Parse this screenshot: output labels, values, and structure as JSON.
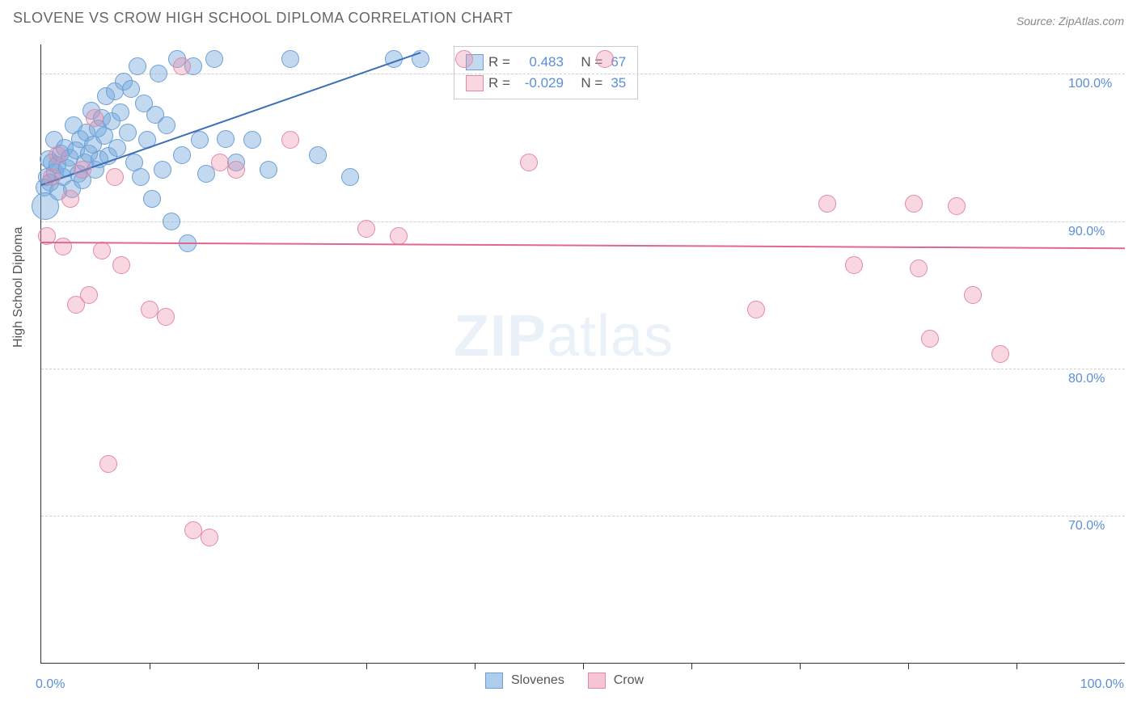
{
  "title": "SLOVENE VS CROW HIGH SCHOOL DIPLOMA CORRELATION CHART",
  "source": "Source: ZipAtlas.com",
  "ylabel": "High School Diploma",
  "watermark_bold": "ZIP",
  "watermark_rest": "atlas",
  "chart": {
    "type": "scatter",
    "xlim": [
      0,
      100
    ],
    "ylim": [
      60,
      102
    ],
    "x_label_min": "0.0%",
    "x_label_max": "100.0%",
    "x_ticks": [
      10,
      20,
      30,
      40,
      50,
      60,
      70,
      80,
      90
    ],
    "y_grid": [
      {
        "v": 70,
        "label": "70.0%"
      },
      {
        "v": 80,
        "label": "80.0%"
      },
      {
        "v": 90,
        "label": "90.0%"
      },
      {
        "v": 100,
        "label": "100.0%"
      }
    ],
    "background": "#ffffff",
    "grid_color": "#d0d0d0",
    "tick_label_color": "#5b8fd6",
    "series": [
      {
        "name": "Slovenes",
        "fill": "rgba(120,170,222,0.45)",
        "stroke": "#6d9fd4",
        "line_color": "#3d6fb8",
        "marker_r": 10,
        "R": "0.483",
        "N": "67",
        "trend": {
          "x1": 0,
          "y1": 92.5,
          "x2": 35,
          "y2": 101.5
        },
        "points": [
          [
            0.3,
            92.3
          ],
          [
            0.4,
            91.0,
            16
          ],
          [
            0.5,
            93.0
          ],
          [
            0.7,
            94.2
          ],
          [
            0.8,
            92.6
          ],
          [
            1.0,
            94.0
          ],
          [
            1.2,
            95.5
          ],
          [
            1.3,
            93.3
          ],
          [
            1.5,
            93.8
          ],
          [
            1.6,
            92.0
          ],
          [
            1.8,
            94.6
          ],
          [
            2.0,
            93.0
          ],
          [
            2.2,
            95.0
          ],
          [
            2.4,
            93.6
          ],
          [
            2.6,
            94.3
          ],
          [
            2.8,
            92.2
          ],
          [
            3.0,
            96.5
          ],
          [
            3.2,
            94.8
          ],
          [
            3.4,
            93.2
          ],
          [
            3.6,
            95.6
          ],
          [
            3.8,
            92.8
          ],
          [
            4.0,
            94.0
          ],
          [
            4.2,
            96.0
          ],
          [
            4.4,
            94.6
          ],
          [
            4.6,
            97.5
          ],
          [
            4.8,
            95.2
          ],
          [
            5.0,
            93.5
          ],
          [
            5.2,
            96.3
          ],
          [
            5.4,
            94.2
          ],
          [
            5.6,
            97.0
          ],
          [
            5.8,
            95.8
          ],
          [
            6.0,
            98.5
          ],
          [
            6.2,
            94.4
          ],
          [
            6.5,
            96.8
          ],
          [
            6.8,
            98.8
          ],
          [
            7.0,
            95.0
          ],
          [
            7.3,
            97.4
          ],
          [
            7.6,
            99.5
          ],
          [
            8.0,
            96.0
          ],
          [
            8.3,
            99.0
          ],
          [
            8.6,
            94.0
          ],
          [
            8.9,
            100.5
          ],
          [
            9.2,
            93.0
          ],
          [
            9.5,
            98.0
          ],
          [
            9.8,
            95.5
          ],
          [
            10.2,
            91.5
          ],
          [
            10.5,
            97.2
          ],
          [
            10.8,
            100.0
          ],
          [
            11.2,
            93.5
          ],
          [
            11.6,
            96.5
          ],
          [
            12.0,
            90.0
          ],
          [
            12.5,
            101.0
          ],
          [
            13.0,
            94.5
          ],
          [
            13.5,
            88.5
          ],
          [
            14.0,
            100.5
          ],
          [
            14.6,
            95.5
          ],
          [
            15.2,
            93.2
          ],
          [
            16.0,
            101.0
          ],
          [
            17.0,
            95.6
          ],
          [
            18.0,
            94.0
          ],
          [
            19.5,
            95.5
          ],
          [
            21.0,
            93.5
          ],
          [
            23.0,
            101.0
          ],
          [
            25.5,
            94.5
          ],
          [
            28.5,
            93.0
          ],
          [
            32.5,
            101.0
          ],
          [
            35.0,
            101.0
          ]
        ]
      },
      {
        "name": "Crow",
        "fill": "rgba(236,140,170,0.35)",
        "stroke": "#e08aa8",
        "line_color": "#e06694",
        "marker_r": 10,
        "R": "-0.029",
        "N": "35",
        "trend": {
          "x1": 0,
          "y1": 88.6,
          "x2": 100,
          "y2": 88.2
        },
        "points": [
          [
            0.5,
            89.0
          ],
          [
            1.0,
            93.0
          ],
          [
            1.5,
            94.5
          ],
          [
            2.0,
            88.3
          ],
          [
            2.7,
            91.5
          ],
          [
            3.2,
            84.3
          ],
          [
            3.8,
            93.5
          ],
          [
            4.4,
            85.0
          ],
          [
            4.9,
            97.0
          ],
          [
            5.6,
            88.0
          ],
          [
            6.2,
            73.5
          ],
          [
            6.8,
            93.0
          ],
          [
            7.4,
            87.0
          ],
          [
            10.0,
            84.0
          ],
          [
            11.5,
            83.5
          ],
          [
            13.0,
            100.5
          ],
          [
            14.0,
            69.0
          ],
          [
            15.5,
            68.5
          ],
          [
            16.5,
            94.0
          ],
          [
            18.0,
            93.5
          ],
          [
            23.0,
            95.5
          ],
          [
            30.0,
            89.5
          ],
          [
            33.0,
            89.0
          ],
          [
            39.0,
            101.0
          ],
          [
            45.0,
            94.0
          ],
          [
            52.0,
            101.0
          ],
          [
            66.0,
            84.0
          ],
          [
            72.5,
            91.2
          ],
          [
            75.0,
            87.0
          ],
          [
            80.5,
            91.2
          ],
          [
            81.0,
            86.8
          ],
          [
            82.0,
            82.0
          ],
          [
            84.5,
            91.0
          ],
          [
            86.0,
            85.0
          ],
          [
            88.5,
            81.0
          ]
        ]
      }
    ]
  },
  "legend_bottom": [
    {
      "label": "Slovenes",
      "fill": "rgba(120,170,222,0.6)",
      "stroke": "#6d9fd4"
    },
    {
      "label": "Crow",
      "fill": "rgba(236,140,170,0.5)",
      "stroke": "#e08aa8"
    }
  ],
  "legend_r_label_R": "R =",
  "legend_r_label_N": "N ="
}
